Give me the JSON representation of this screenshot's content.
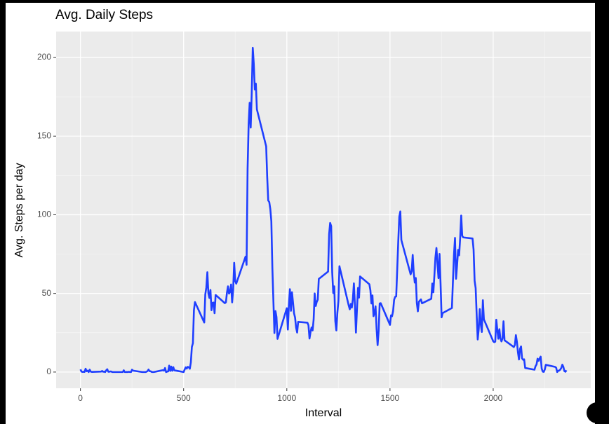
{
  "chart_data": {
    "type": "line",
    "title": "Avg. Daily Steps",
    "x_label": "Interval",
    "y_label": "Avg. Steps per day",
    "color": "#1f3fff",
    "grid": true,
    "xlim": [
      -117.75,
      2472.75
    ],
    "ylim": [
      -10.3,
      216.5
    ],
    "xticks": [
      0,
      500,
      1000,
      1500,
      2000
    ],
    "yticks": [
      0,
      50,
      100,
      150,
      200
    ],
    "xminor": [
      250,
      750,
      1250,
      1750,
      2250
    ],
    "yminor": [
      25,
      75,
      125,
      175
    ],
    "x": [
      0,
      5,
      10,
      15,
      20,
      25,
      30,
      35,
      40,
      45,
      50,
      55,
      100,
      105,
      110,
      115,
      120,
      125,
      130,
      135,
      140,
      145,
      150,
      155,
      200,
      205,
      210,
      215,
      220,
      225,
      230,
      235,
      240,
      245,
      250,
      255,
      300,
      305,
      310,
      315,
      320,
      325,
      330,
      335,
      340,
      345,
      350,
      355,
      400,
      405,
      410,
      415,
      420,
      425,
      430,
      435,
      440,
      445,
      450,
      455,
      500,
      505,
      510,
      515,
      520,
      525,
      530,
      535,
      540,
      545,
      550,
      555,
      600,
      605,
      610,
      615,
      620,
      625,
      630,
      635,
      640,
      645,
      650,
      655,
      700,
      705,
      710,
      715,
      720,
      725,
      730,
      735,
      740,
      745,
      750,
      755,
      800,
      805,
      810,
      815,
      820,
      825,
      830,
      835,
      840,
      845,
      850,
      855,
      900,
      905,
      910,
      915,
      920,
      925,
      930,
      935,
      940,
      945,
      950,
      955,
      1000,
      1005,
      1010,
      1015,
      1020,
      1025,
      1030,
      1035,
      1040,
      1045,
      1050,
      1055,
      1100,
      1105,
      1110,
      1115,
      1120,
      1125,
      1130,
      1135,
      1140,
      1145,
      1150,
      1155,
      1200,
      1205,
      1210,
      1215,
      1220,
      1225,
      1230,
      1235,
      1240,
      1245,
      1250,
      1255,
      1300,
      1305,
      1310,
      1315,
      1320,
      1325,
      1330,
      1335,
      1340,
      1345,
      1350,
      1355,
      1400,
      1405,
      1410,
      1415,
      1420,
      1425,
      1430,
      1435,
      1440,
      1445,
      1450,
      1455,
      1500,
      1505,
      1510,
      1515,
      1520,
      1525,
      1530,
      1535,
      1540,
      1545,
      1550,
      1555,
      1600,
      1605,
      1610,
      1615,
      1620,
      1625,
      1630,
      1635,
      1640,
      1645,
      1650,
      1655,
      1700,
      1705,
      1710,
      1715,
      1720,
      1725,
      1730,
      1735,
      1740,
      1745,
      1750,
      1755,
      1800,
      1805,
      1810,
      1815,
      1820,
      1825,
      1830,
      1835,
      1840,
      1845,
      1850,
      1855,
      1900,
      1905,
      1910,
      1915,
      1920,
      1925,
      1930,
      1935,
      1940,
      1945,
      1950,
      1955,
      2000,
      2005,
      2010,
      2015,
      2020,
      2025,
      2030,
      2035,
      2040,
      2045,
      2050,
      2055,
      2100,
      2105,
      2110,
      2115,
      2120,
      2125,
      2130,
      2135,
      2140,
      2145,
      2150,
      2155,
      2200,
      2205,
      2210,
      2215,
      2220,
      2225,
      2230,
      2235,
      2240,
      2245,
      2250,
      2255,
      2300,
      2305,
      2310,
      2315,
      2320,
      2325,
      2330,
      2335,
      2340,
      2345,
      2350,
      2355
    ],
    "values": [
      1.7,
      0.3,
      0.1,
      0.2,
      0.1,
      2.1,
      0.5,
      0.9,
      0,
      1.5,
      0.3,
      0.1,
      0.3,
      0.7,
      0.2,
      0.3,
      0,
      1.1,
      1.8,
      0.2,
      0.2,
      0.4,
      0.3,
      0,
      0,
      0,
      1.1,
      0,
      0,
      0.1,
      0,
      0.2,
      0,
      0,
      1.5,
      0.9,
      0,
      0,
      0,
      0,
      0.2,
      0.6,
      1.6,
      0.6,
      0.5,
      0.1,
      0,
      0,
      1.2,
      0.9,
      2.6,
      0,
      0.3,
      0.4,
      4.1,
      0.7,
      3.5,
      0.8,
      3.1,
      1.1,
      0,
      1.6,
      3,
      2.2,
      3.3,
      3,
      2.1,
      6.1,
      16,
      18.3,
      39.5,
      44.5,
      31.5,
      49.3,
      53.8,
      63.5,
      50,
      47.1,
      52.2,
      39.3,
      44,
      44.2,
      37.4,
      49,
      43.8,
      44.4,
      50.5,
      54.5,
      49.9,
      51,
      55.7,
      44.3,
      52.3,
      69.5,
      57.8,
      56.2,
      73.4,
      68.2,
      129.4,
      157.5,
      171.2,
      155.4,
      177.3,
      206.2,
      195.9,
      179.6,
      183.4,
      167,
      143.5,
      124,
      109.1,
      108.1,
      103.7,
      95.97,
      66.2,
      45.2,
      24.8,
      38.8,
      35,
      21.1,
      40.6,
      26.98,
      42.4,
      52.7,
      38.9,
      50.8,
      44.3,
      37.4,
      34.7,
      28.3,
      25.1,
      31.9,
      31.4,
      29.7,
      21.3,
      25.5,
      28.4,
      26.5,
      33.4,
      49.98,
      42,
      44.6,
      46,
      59.2,
      63.9,
      87.7,
      94.8,
      92.8,
      63.4,
      50.2,
      54.5,
      32.4,
      26.5,
      37.7,
      45.1,
      67.3,
      42.3,
      39.9,
      43.3,
      40.98,
      46.2,
      56.4,
      42.8,
      25.1,
      39.97,
      53.5,
      47.3,
      60.8,
      55.8,
      51.96,
      43.6,
      48.7,
      35.5,
      37.5,
      41.8,
      27.5,
      17.1,
      26.1,
      43.6,
      43.8,
      30,
      36.1,
      35.5,
      38.8,
      45.96,
      47.8,
      48.1,
      65.3,
      82.9,
      98.7,
      102.1,
      83.96,
      62.1,
      64.1,
      74.5,
      63.2,
      56.9,
      59.8,
      43.9,
      38.6,
      44.7,
      45.5,
      46.2,
      43.7,
      46.6,
      56.3,
      50.7,
      61.2,
      72.7,
      78.9,
      68.9,
      59.7,
      75.1,
      56.5,
      34.8,
      37.5,
      40.7,
      58,
      74.7,
      85.3,
      59.3,
      67.8,
      77.7,
      74.2,
      85.3,
      99.5,
      86.6,
      85.6,
      84.9,
      77.8,
      58,
      53.4,
      36.3,
      20.7,
      27.4,
      40,
      30.2,
      25.5,
      45.7,
      33.5,
      19.6,
      19,
      19.3,
      33.3,
      26.8,
      21.2,
      27.3,
      21.3,
      19.5,
      21.3,
      32.3,
      20.2,
      15.9,
      17.2,
      23.5,
      19.2,
      12.5,
      8,
      14.7,
      16.3,
      8.7,
      7.8,
      8.1,
      2.6,
      1.5,
      3.7,
      4.8,
      8.5,
      7.1,
      8.7,
      9.8,
      2.2,
      0.3,
      0.1,
      1.6,
      4.6,
      3.3,
      2.8,
      0,
      0.8,
      0.96,
      1.6,
      2.6,
      4.7,
      3.3,
      0.6,
      0.2,
      1.1
    ]
  }
}
